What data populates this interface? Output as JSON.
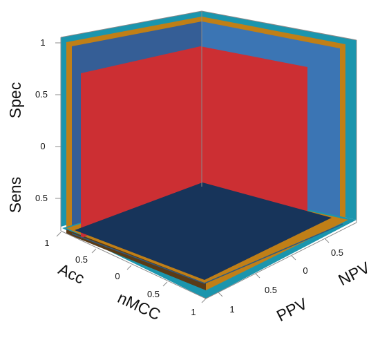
{
  "chart_data": {
    "type": "3d-box",
    "labels": {
      "left_upper": "Spec",
      "left_lower": "Sens",
      "front_left_upper": "Acc",
      "front_left_lower": "nMCC",
      "front_right_lower": "PPV",
      "front_right_upper": "NPV"
    },
    "ticks": {
      "left": [
        "1",
        "0.5",
        "0",
        "0.5"
      ],
      "front_left": [
        "1",
        "0.5",
        "0",
        "0.5",
        "1"
      ],
      "front_right": [
        "0.5",
        "0",
        "0.5",
        "1"
      ]
    },
    "surfaces": [
      {
        "name": "teal",
        "level": 1.0,
        "color": "#1b95ad"
      },
      {
        "name": "orange",
        "level": 0.95,
        "color": "#c07f17"
      },
      {
        "name": "blue",
        "level": 0.9,
        "color": "#2f5f99"
      },
      {
        "name": "red",
        "level": 0.8,
        "color": "#cc2f33"
      }
    ],
    "colors": {
      "back_left_wall": "#355e96",
      "back_right_wall": "#3b75b4",
      "floor": "#17345a",
      "red_planes": "#cc2f33"
    }
  }
}
